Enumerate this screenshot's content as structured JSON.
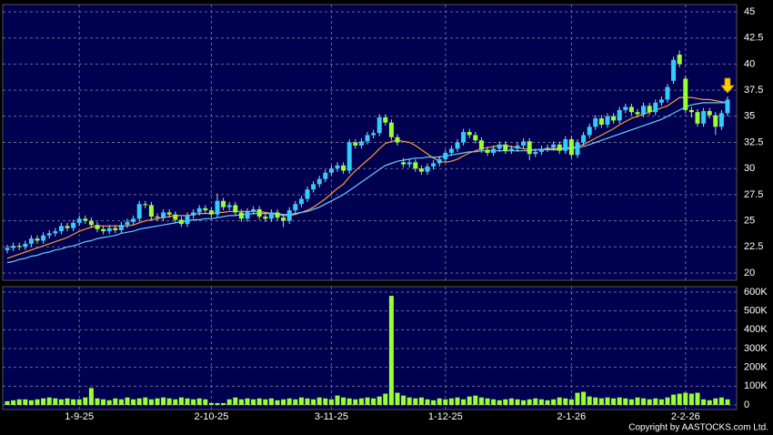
{
  "chart_data": {
    "type": "candlestick",
    "categories": [
      null,
      null,
      null,
      null,
      null,
      null,
      null,
      null,
      null,
      null,
      null,
      null,
      "1-9-25",
      null,
      null,
      null,
      null,
      null,
      null,
      null,
      null,
      null,
      null,
      null,
      null,
      null,
      null,
      null,
      null,
      null,
      null,
      null,
      null,
      null,
      "2-10-25",
      null,
      null,
      null,
      null,
      null,
      null,
      null,
      null,
      null,
      null,
      null,
      null,
      null,
      null,
      null,
      null,
      null,
      null,
      null,
      "3-11-25",
      null,
      null,
      null,
      null,
      null,
      null,
      null,
      null,
      null,
      null,
      null,
      null,
      null,
      null,
      null,
      null,
      null,
      null,
      "1-12-25",
      null,
      null,
      null,
      null,
      null,
      null,
      null,
      null,
      null,
      null,
      null,
      null,
      null,
      null,
      null,
      null,
      null,
      null,
      null,
      null,
      "2-1-26",
      null,
      null,
      null,
      null,
      null,
      null,
      null,
      null,
      null,
      null,
      null,
      null,
      null,
      null,
      null,
      null,
      null,
      null,
      "2-2-26",
      null,
      null,
      null,
      null,
      null,
      null,
      null
    ],
    "ohlc": [
      [
        22.2,
        22.7,
        21.9,
        22.4
      ],
      [
        22.4,
        22.9,
        22.1,
        22.6
      ],
      [
        22.6,
        22.9,
        22.2,
        22.5
      ],
      [
        22.5,
        23.1,
        22.2,
        22.8
      ],
      [
        22.8,
        23.6,
        22.5,
        23.3
      ],
      [
        23.3,
        23.6,
        22.8,
        23.1
      ],
      [
        23.1,
        23.9,
        22.8,
        23.6
      ],
      [
        23.6,
        24.1,
        23.3,
        23.8
      ],
      [
        23.8,
        24.3,
        23.5,
        24.0
      ],
      [
        24.0,
        24.8,
        23.7,
        24.5
      ],
      [
        24.5,
        24.8,
        24.0,
        24.3
      ],
      [
        24.3,
        25.1,
        24.0,
        24.8
      ],
      [
        24.8,
        25.5,
        24.5,
        25.2
      ],
      [
        25.2,
        25.5,
        24.7,
        25.0
      ],
      [
        25.0,
        25.3,
        24.3,
        24.6
      ],
      [
        24.6,
        24.9,
        23.9,
        24.2
      ],
      [
        24.2,
        24.5,
        23.7,
        24.0
      ],
      [
        24.0,
        24.6,
        23.7,
        24.3
      ],
      [
        24.3,
        24.6,
        23.8,
        24.1
      ],
      [
        24.1,
        24.9,
        23.8,
        24.6
      ],
      [
        24.6,
        25.2,
        24.3,
        24.9
      ],
      [
        24.9,
        25.5,
        24.6,
        25.2
      ],
      [
        25.2,
        26.9,
        24.9,
        26.6
      ],
      [
        26.6,
        26.9,
        26.2,
        26.5
      ],
      [
        26.5,
        26.8,
        25.1,
        25.4
      ],
      [
        25.4,
        25.7,
        25.0,
        25.3
      ],
      [
        25.3,
        26.1,
        25.0,
        25.8
      ],
      [
        25.8,
        26.1,
        25.3,
        25.6
      ],
      [
        25.6,
        25.9,
        24.8,
        25.1
      ],
      [
        25.1,
        25.4,
        24.4,
        24.7
      ],
      [
        24.7,
        25.8,
        24.4,
        25.5
      ],
      [
        25.5,
        26.1,
        25.2,
        25.8
      ],
      [
        25.8,
        26.5,
        25.5,
        26.2
      ],
      [
        26.2,
        26.5,
        25.7,
        26.0
      ],
      [
        26.0,
        26.3,
        25.3,
        25.6
      ],
      [
        25.6,
        27.6,
        25.3,
        26.9
      ],
      [
        26.9,
        27.2,
        26.0,
        26.3
      ],
      [
        26.3,
        26.8,
        26.0,
        26.5
      ],
      [
        26.5,
        26.8,
        25.5,
        25.8
      ],
      [
        25.8,
        26.1,
        24.9,
        25.2
      ],
      [
        25.2,
        26.2,
        24.9,
        25.9
      ],
      [
        25.9,
        26.4,
        25.6,
        26.1
      ],
      [
        26.1,
        26.4,
        25.1,
        25.4
      ],
      [
        25.4,
        25.7,
        24.9,
        25.2
      ],
      [
        25.2,
        26.1,
        24.9,
        25.8
      ],
      [
        25.8,
        26.1,
        25.0,
        25.3
      ],
      [
        25.3,
        25.6,
        24.4,
        25.0
      ],
      [
        25.0,
        26.3,
        24.7,
        26.0
      ],
      [
        26.0,
        26.9,
        25.7,
        26.6
      ],
      [
        26.6,
        27.4,
        26.3,
        27.1
      ],
      [
        27.1,
        28.3,
        26.8,
        28.0
      ],
      [
        28.0,
        28.8,
        27.7,
        28.5
      ],
      [
        28.5,
        29.3,
        28.2,
        29.0
      ],
      [
        29.0,
        29.9,
        28.7,
        29.6
      ],
      [
        29.6,
        30.3,
        29.3,
        30.0
      ],
      [
        30.0,
        30.6,
        29.7,
        30.3
      ],
      [
        30.3,
        30.6,
        29.5,
        29.8
      ],
      [
        29.8,
        32.8,
        29.5,
        32.5
      ],
      [
        32.5,
        32.8,
        31.9,
        32.2
      ],
      [
        32.2,
        32.9,
        31.9,
        32.6
      ],
      [
        32.6,
        33.5,
        32.3,
        33.2
      ],
      [
        33.2,
        33.7,
        32.9,
        33.4
      ],
      [
        33.4,
        35.2,
        33.1,
        34.9
      ],
      [
        34.9,
        35.2,
        34.1,
        34.4
      ],
      [
        34.4,
        34.7,
        32.7,
        33.0
      ],
      [
        33.0,
        33.3,
        32.2,
        32.5
      ],
      [
        30.6,
        31.0,
        30.1,
        30.4
      ],
      [
        30.4,
        30.9,
        30.1,
        30.6
      ],
      [
        30.6,
        30.9,
        29.7,
        30.0
      ],
      [
        30.0,
        30.3,
        29.4,
        29.7
      ],
      [
        29.7,
        30.5,
        29.4,
        30.2
      ],
      [
        30.2,
        30.8,
        29.9,
        30.5
      ],
      [
        30.5,
        31.2,
        30.2,
        30.9
      ],
      [
        30.9,
        31.8,
        30.6,
        31.5
      ],
      [
        31.5,
        32.2,
        31.2,
        31.9
      ],
      [
        31.9,
        32.8,
        31.6,
        32.5
      ],
      [
        32.5,
        33.8,
        32.2,
        33.5
      ],
      [
        33.5,
        33.8,
        32.9,
        33.2
      ],
      [
        33.2,
        33.5,
        32.4,
        32.7
      ],
      [
        32.7,
        33.0,
        31.5,
        31.8
      ],
      [
        31.8,
        32.1,
        31.2,
        31.5
      ],
      [
        31.5,
        32.2,
        31.2,
        31.9
      ],
      [
        31.9,
        32.6,
        31.6,
        32.3
      ],
      [
        32.3,
        32.6,
        31.4,
        31.7
      ],
      [
        31.7,
        32.2,
        31.4,
        31.9
      ],
      [
        31.9,
        32.5,
        31.6,
        32.2
      ],
      [
        32.2,
        32.9,
        31.9,
        32.6
      ],
      [
        32.6,
        32.9,
        30.8,
        31.4
      ],
      [
        31.4,
        31.9,
        31.1,
        31.6
      ],
      [
        31.6,
        32.2,
        31.3,
        31.9
      ],
      [
        31.9,
        32.3,
        31.6,
        32.0
      ],
      [
        32.0,
        32.6,
        31.7,
        32.3
      ],
      [
        32.3,
        32.6,
        31.4,
        31.7
      ],
      [
        31.7,
        33.1,
        31.4,
        32.8
      ],
      [
        32.8,
        33.1,
        31.0,
        31.3
      ],
      [
        31.3,
        32.8,
        31.0,
        32.5
      ],
      [
        32.5,
        33.5,
        32.2,
        33.2
      ],
      [
        33.2,
        34.3,
        32.9,
        34.0
      ],
      [
        34.0,
        35.1,
        33.7,
        34.8
      ],
      [
        34.8,
        35.1,
        33.9,
        34.2
      ],
      [
        34.2,
        35.3,
        33.9,
        35.0
      ],
      [
        35.0,
        35.3,
        34.3,
        34.6
      ],
      [
        34.6,
        35.9,
        34.3,
        35.6
      ],
      [
        35.6,
        36.2,
        35.3,
        35.9
      ],
      [
        35.9,
        36.2,
        35.1,
        35.4
      ],
      [
        35.4,
        35.7,
        34.9,
        35.2
      ],
      [
        35.2,
        36.3,
        34.9,
        36.0
      ],
      [
        36.0,
        36.3,
        35.1,
        35.4
      ],
      [
        35.4,
        36.6,
        35.1,
        36.3
      ],
      [
        36.3,
        36.9,
        36.0,
        36.6
      ],
      [
        36.6,
        38.1,
        36.3,
        37.8
      ],
      [
        38.4,
        40.7,
        38.1,
        40.4
      ],
      [
        40.9,
        41.3,
        39.7,
        40.0
      ],
      [
        38.6,
        38.9,
        35.3,
        35.6
      ],
      [
        35.6,
        35.9,
        34.9,
        35.4
      ],
      [
        35.4,
        35.7,
        34.0,
        34.3
      ],
      [
        34.3,
        35.8,
        34.0,
        35.5
      ],
      [
        35.5,
        35.8,
        34.8,
        35.1
      ],
      [
        35.1,
        35.4,
        33.2,
        34.0
      ],
      [
        34.0,
        35.6,
        33.7,
        35.3
      ],
      [
        35.3,
        36.9,
        35.0,
        36.6
      ]
    ],
    "up_color": "#33ccff",
    "down_color": "#99ff33",
    "lines": [
      {
        "color": "#ff9933",
        "values": [
          21.4,
          21.6,
          21.8,
          22.0,
          22.2,
          22.4,
          22.6,
          22.8,
          23.0,
          23.2,
          23.4,
          23.7,
          24.0,
          24.2,
          24.4,
          24.5,
          24.5,
          24.5,
          24.5,
          24.5,
          24.5,
          24.6,
          24.8,
          25.0,
          25.1,
          25.2,
          25.3,
          25.4,
          25.5,
          25.5,
          25.5,
          25.6,
          25.7,
          25.7,
          25.7,
          25.8,
          25.8,
          25.9,
          25.9,
          25.9,
          25.9,
          25.9,
          25.9,
          25.8,
          25.7,
          25.6,
          25.5,
          25.5,
          25.6,
          25.8,
          26.0,
          26.3,
          26.7,
          27.1,
          27.6,
          28.1,
          28.5,
          29.2,
          29.8,
          30.3,
          30.8,
          31.3,
          31.9,
          32.4,
          32.6,
          32.7,
          32.6,
          32.5,
          32.2,
          31.8,
          31.4,
          31.0,
          30.7,
          30.6,
          30.7,
          30.9,
          31.2,
          31.5,
          31.7,
          31.9,
          32.0,
          32.1,
          32.2,
          32.2,
          32.1,
          32.0,
          31.9,
          31.8,
          31.8,
          31.8,
          31.9,
          31.9,
          31.9,
          32.0,
          32.0,
          32.1,
          32.3,
          32.6,
          32.9,
          33.2,
          33.5,
          33.8,
          34.2,
          34.5,
          34.8,
          35.0,
          35.2,
          35.4,
          35.6,
          35.8,
          36.0,
          36.4,
          36.8,
          36.8,
          36.8,
          36.7,
          36.6,
          36.6,
          36.5,
          36.4,
          36.3
        ]
      },
      {
        "color": "#66ccff",
        "values": [
          21.0,
          21.1,
          21.3,
          21.4,
          21.6,
          21.7,
          21.9,
          22.0,
          22.2,
          22.3,
          22.5,
          22.6,
          22.8,
          23.0,
          23.1,
          23.3,
          23.4,
          23.5,
          23.6,
          23.8,
          23.9,
          24.0,
          24.2,
          24.3,
          24.4,
          24.5,
          24.6,
          24.7,
          24.8,
          24.9,
          25.0,
          25.1,
          25.1,
          25.2,
          25.2,
          25.3,
          25.4,
          25.5,
          25.5,
          25.6,
          25.6,
          25.7,
          25.7,
          25.7,
          25.7,
          25.7,
          25.6,
          25.6,
          25.7,
          25.8,
          25.9,
          26.1,
          26.3,
          26.6,
          26.9,
          27.2,
          27.5,
          27.9,
          28.3,
          28.7,
          29.1,
          29.5,
          29.9,
          30.3,
          30.5,
          30.7,
          30.8,
          30.9,
          31.0,
          31.0,
          31.1,
          31.1,
          31.1,
          31.2,
          31.3,
          31.4,
          31.5,
          31.6,
          31.6,
          31.7,
          31.7,
          31.7,
          31.7,
          31.7,
          31.7,
          31.7,
          31.7,
          31.7,
          31.8,
          31.8,
          31.8,
          31.8,
          31.8,
          31.9,
          31.9,
          32.0,
          32.1,
          32.3,
          32.5,
          32.7,
          32.9,
          33.1,
          33.3,
          33.5,
          33.7,
          33.9,
          34.1,
          34.3,
          34.5,
          34.7,
          35.0,
          35.3,
          35.6,
          35.9,
          36.1,
          36.2,
          36.3,
          36.3,
          36.3,
          36.3,
          36.3
        ]
      }
    ],
    "ylim": [
      20,
      45
    ],
    "yticks": [
      20,
      22.5,
      25,
      27.5,
      30,
      32.5,
      35,
      37.5,
      40,
      42.5,
      45
    ],
    "grid": true,
    "volume": {
      "color": "#99ff33",
      "values": [
        20000,
        25000,
        30000,
        30000,
        25000,
        30000,
        35000,
        40000,
        35000,
        30000,
        35000,
        30000,
        30000,
        40000,
        90000,
        35000,
        30000,
        25000,
        35000,
        30000,
        40000,
        30000,
        35000,
        40000,
        30000,
        35000,
        40000,
        35000,
        30000,
        40000,
        35000,
        30000,
        35000,
        30000,
        10000,
        10000,
        10000,
        30000,
        40000,
        30000,
        35000,
        30000,
        35000,
        30000,
        35000,
        25000,
        30000,
        35000,
        30000,
        40000,
        35000,
        30000,
        40000,
        35000,
        30000,
        50000,
        40000,
        35000,
        30000,
        35000,
        40000,
        35000,
        45000,
        60000,
        580000,
        65000,
        50000,
        40000,
        35000,
        40000,
        30000,
        25000,
        35000,
        30000,
        35000,
        40000,
        30000,
        45000,
        50000,
        40000,
        35000,
        30000,
        25000,
        30000,
        35000,
        30000,
        25000,
        30000,
        35000,
        30000,
        25000,
        30000,
        40000,
        35000,
        30000,
        65000,
        70000,
        45000,
        40000,
        35000,
        40000,
        35000,
        40000,
        35000,
        30000,
        40000,
        35000,
        30000,
        35000,
        30000,
        40000,
        55000,
        60000,
        65000,
        60000,
        65000,
        30000,
        25000,
        35000,
        40000,
        30000
      ],
      "ylim": [
        0,
        600000
      ],
      "yticks": [
        0,
        {
          "value": 100000,
          "label": "100K"
        },
        {
          "value": 200000,
          "label": "200K"
        },
        {
          "value": 300000,
          "label": "300K"
        },
        {
          "value": 400000,
          "label": "400K"
        },
        {
          "value": 500000,
          "label": "500K"
        },
        {
          "value": 600000,
          "label": "600K"
        }
      ]
    },
    "copyright": "Copyright by AASTOCKS.com Ltd."
  }
}
